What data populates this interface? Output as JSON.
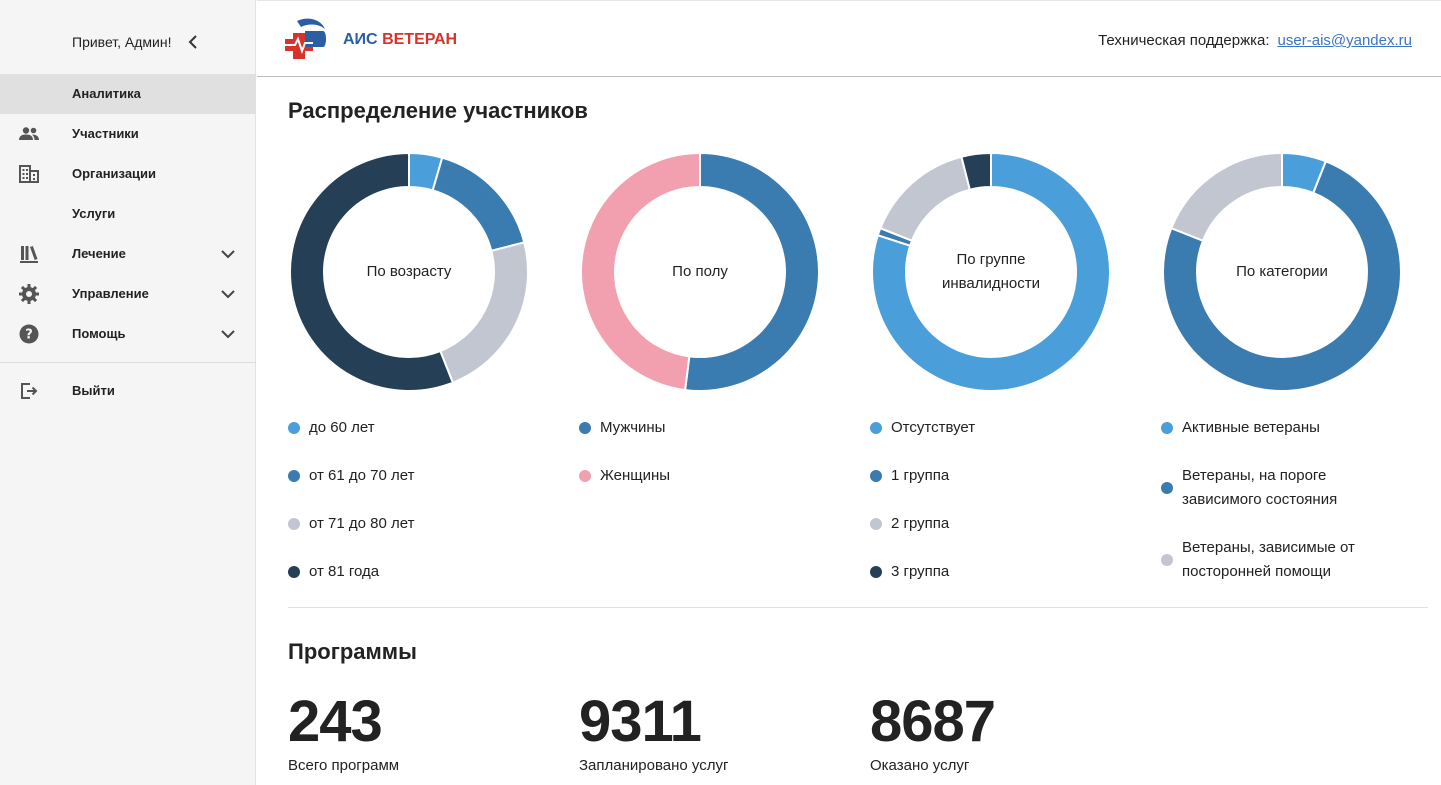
{
  "sidebar": {
    "greeting": "Привет, Админ!",
    "items": [
      {
        "label": "Аналитика",
        "icon": "analytics",
        "active": true
      },
      {
        "label": "Участники",
        "icon": "people-icon"
      },
      {
        "label": "Организации",
        "icon": "building-icon"
      },
      {
        "label": "Услуги",
        "icon": ""
      },
      {
        "label": "Лечение",
        "icon": "books-icon",
        "expandable": true
      },
      {
        "label": "Управление",
        "icon": "gear-icon",
        "expandable": true
      },
      {
        "label": "Помощь",
        "icon": "help-icon",
        "expandable": true
      }
    ],
    "logout": "Выйти"
  },
  "header": {
    "brand_part1": "АИС",
    "brand_part2": "ВЕТЕРАН",
    "support_label": "Техническая поддержка:",
    "support_email": "user-ais@yandex.ru"
  },
  "main": {
    "distribution_title": "Распределение участников",
    "programs_title": "Программы"
  },
  "chart_data": [
    {
      "type": "pie",
      "title": "По возрасту",
      "categories": [
        "до 60 лет",
        "от 61 до 70 лет",
        "от 71 до 80 лет",
        "от 81 года"
      ],
      "values": [
        4.5,
        16.5,
        23,
        56
      ],
      "colors": [
        "#4a9fdb",
        "#3a7bb0",
        "#c2c6d0",
        "#243f56"
      ]
    },
    {
      "type": "pie",
      "title": "По полу",
      "categories": [
        "Мужчины",
        "Женщины"
      ],
      "values": [
        52,
        48
      ],
      "colors": [
        "#3a7bb0",
        "#f2a0b0"
      ]
    },
    {
      "type": "pie",
      "title": "По группе инвалидности",
      "categories": [
        "Отсутствует",
        "1 группа",
        "2 группа",
        "3 группа"
      ],
      "values": [
        80,
        1,
        15,
        4
      ],
      "colors": [
        "#4a9fdb",
        "#3a7bb0",
        "#c2c6d0",
        "#243f56"
      ]
    },
    {
      "type": "pie",
      "title": "По категории",
      "categories": [
        "Активные ветераны",
        "Ветераны, на пороге зависимого состояния",
        "Ветераны, зависимые от посторонней помощи"
      ],
      "values": [
        6,
        75,
        19
      ],
      "colors": [
        "#4a9fdb",
        "#3a7bb0",
        "#c2c6d0"
      ]
    }
  ],
  "stats": [
    {
      "value": "243",
      "label": "Всего программ"
    },
    {
      "value": "9311",
      "label": "Запланировано услуг"
    },
    {
      "value": "8687",
      "label": "Оказано услуг"
    }
  ]
}
